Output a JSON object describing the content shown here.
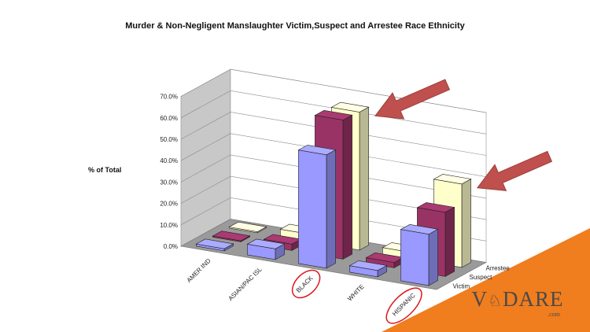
{
  "chart_data": {
    "type": "bar",
    "title": "Murder & Non-Negligent Manslaughter Victim,Suspect and Arrestee Race Ethnicity",
    "ylabel": "% of Total",
    "ylim": [
      0,
      70
    ],
    "yticks": [
      "0.0%",
      "10.0%",
      "20.0%",
      "30.0%",
      "40.0%",
      "50.0%",
      "60.0%",
      "70.0%"
    ],
    "categories": [
      "AMER IND",
      "ASIAN/PAC ISL",
      "BLACK",
      "WHITE",
      "HISPANIC"
    ],
    "series": [
      {
        "name": "Victim",
        "values": [
          1.0,
          5.0,
          53.0,
          3.0,
          24.0
        ],
        "color": "#9999ff"
      },
      {
        "name": "Suspect",
        "values": [
          0.5,
          3.0,
          65.0,
          2.5,
          30.0
        ],
        "color": "#993366"
      },
      {
        "name": "Arrestee",
        "values": [
          0.5,
          3.5,
          64.5,
          3.0,
          39.0
        ],
        "color": "#ffffcc"
      }
    ],
    "grid": true,
    "annotations": [
      {
        "type": "arrow",
        "target": "BLACK",
        "color": "#c0504d"
      },
      {
        "type": "arrow",
        "target": "HISPANIC",
        "color": "#c0504d"
      },
      {
        "type": "circle",
        "target": "BLACK",
        "color": "#d9181f"
      },
      {
        "type": "circle",
        "target": "HISPANIC",
        "color": "#d9181f"
      }
    ]
  },
  "brand": {
    "name": "VDARE",
    "domain": ".com",
    "accent": "#f07d1e"
  }
}
